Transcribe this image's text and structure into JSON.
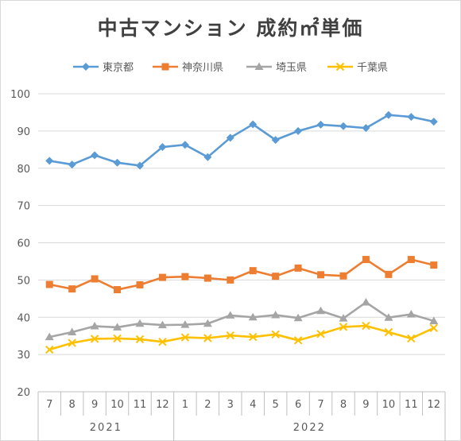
{
  "chart_data": {
    "type": "line",
    "title": "中古マンション 成約㎡単価",
    "xlabel": "",
    "ylabel": "",
    "ylim": [
      20,
      100
    ],
    "yticks": [
      20,
      30,
      40,
      50,
      60,
      70,
      80,
      90,
      100
    ],
    "grid": true,
    "legend_position": "top",
    "categories": [
      "7",
      "8",
      "9",
      "10",
      "11",
      "12",
      "1",
      "2",
      "3",
      "4",
      "5",
      "6",
      "7",
      "8",
      "9",
      "10",
      "11",
      "12"
    ],
    "year_groups": [
      {
        "label": "2021",
        "count": 6
      },
      {
        "label": "2022",
        "count": 12
      }
    ],
    "series": [
      {
        "name": "東京都",
        "color": "#5b9bd5",
        "marker": "diamond",
        "values": [
          82.0,
          81.0,
          83.5,
          81.5,
          80.7,
          85.7,
          86.3,
          83.0,
          88.2,
          91.8,
          87.6,
          90.0,
          91.7,
          91.3,
          90.8,
          94.3,
          93.8,
          92.5
        ]
      },
      {
        "name": "神奈川県",
        "color": "#ed7d31",
        "marker": "square",
        "values": [
          48.8,
          47.6,
          50.3,
          47.4,
          48.7,
          50.7,
          50.9,
          50.5,
          50.0,
          52.5,
          51.0,
          53.2,
          51.4,
          51.1,
          55.5,
          51.5,
          55.5,
          54.0
        ]
      },
      {
        "name": "埼玉県",
        "color": "#a5a5a5",
        "marker": "triangle",
        "values": [
          34.7,
          36.0,
          37.6,
          37.3,
          38.3,
          37.9,
          38.0,
          38.3,
          40.5,
          40.0,
          40.6,
          39.8,
          41.7,
          39.7,
          44.0,
          39.9,
          40.8,
          39.0
        ]
      },
      {
        "name": "千葉県",
        "color": "#ffc000",
        "marker": "x",
        "values": [
          31.3,
          33.1,
          34.2,
          34.3,
          34.1,
          33.4,
          34.6,
          34.4,
          35.1,
          34.7,
          35.4,
          33.8,
          35.5,
          37.4,
          37.7,
          36.0,
          34.3,
          37.1
        ]
      }
    ]
  }
}
